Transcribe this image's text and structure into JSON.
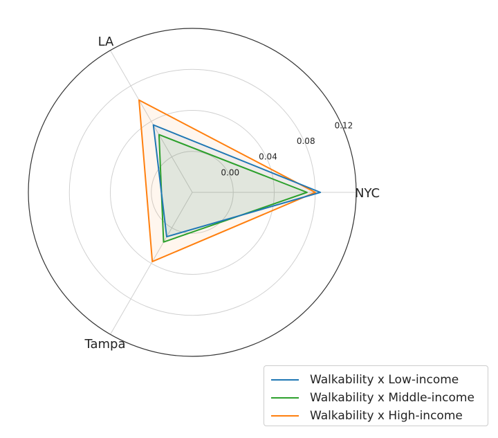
{
  "chart_data": {
    "type": "radar",
    "axes": [
      "NYC",
      "LA",
      "Tampa"
    ],
    "radial_ticks": [
      "0.00",
      "0.04",
      "0.08",
      "0.12"
    ],
    "radial_tick_values": [
      0.0,
      0.04,
      0.08,
      0.12
    ],
    "rlim": [
      -0.04,
      0.12
    ],
    "grid": true,
    "legend_position": "bottom-right",
    "series": [
      {
        "name": "Walkability x Low-income",
        "color": "#1f77b4",
        "values": [
          0.085,
          0.036,
          0.01
        ]
      },
      {
        "name": "Walkability x Middle-income",
        "color": "#2ca02c",
        "values": [
          0.072,
          0.025,
          0.016
        ]
      },
      {
        "name": "Walkability x High-income",
        "color": "#ff7f0e",
        "values": [
          0.08,
          0.064,
          0.038
        ]
      }
    ]
  }
}
